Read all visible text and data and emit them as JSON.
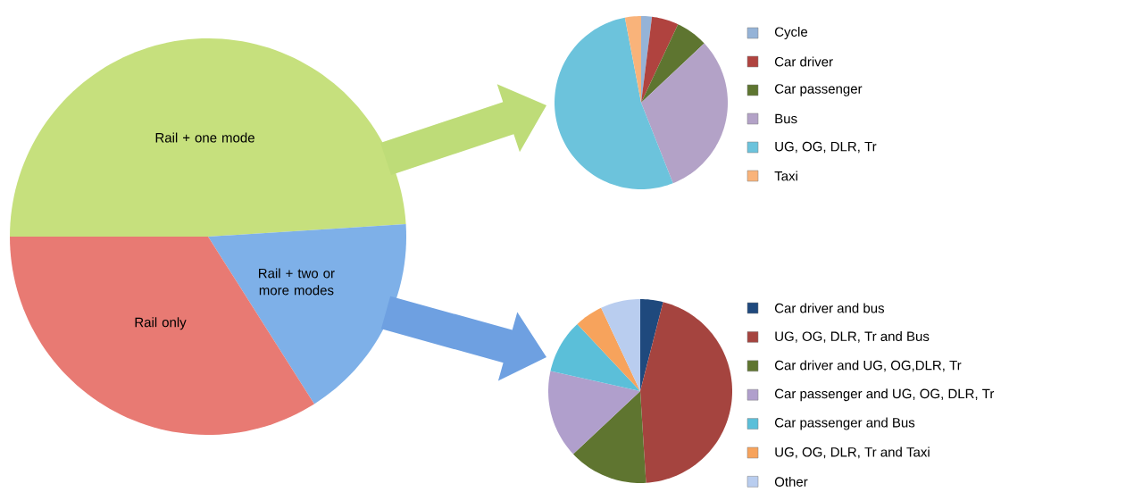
{
  "chart_data": [
    {
      "type": "pie",
      "categories": [
        "Rail + one mode",
        "Rail + two or more modes",
        "Rail  only"
      ],
      "values": [
        49,
        17,
        34
      ],
      "colors": [
        "#c6e07d",
        "#7eb0e8",
        "#e87a73"
      ]
    },
    {
      "type": "pie",
      "categories": [
        "Cycle",
        "Car driver",
        "Car passenger",
        "Bus",
        "UG, OG, DLR, Tr",
        "Taxi"
      ],
      "values": [
        2,
        5,
        6,
        31,
        53,
        3
      ],
      "colors": [
        "#95b3d7",
        "#b0433f",
        "#5e7530",
        "#b3a2c7",
        "#6cc3dc",
        "#f9b37a"
      ],
      "legend": "right"
    },
    {
      "type": "pie",
      "categories": [
        "Car driver and bus",
        "UG, OG, DLR, Tr and Bus",
        "Car driver and UG, OG,DLR, Tr",
        "Car passenger and UG, OG, DLR, Tr",
        "Car passenger and Bus",
        "UG, OG, DLR, Tr and Taxi",
        "Other"
      ],
      "values": [
        4,
        45,
        14,
        15.5,
        9.5,
        5,
        7
      ],
      "colors": [
        "#1f497d",
        "#a5443f",
        "#5f7530",
        "#b09fcc",
        "#5bbfd9",
        "#f7a35c",
        "#b9cdef"
      ],
      "legend": "right"
    }
  ]
}
